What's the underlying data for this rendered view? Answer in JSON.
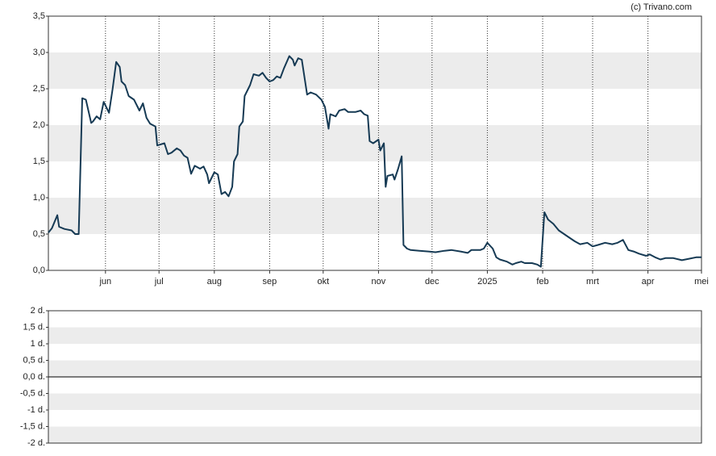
{
  "credit": "(c) Trivano.com",
  "chart_data": [
    {
      "type": "line",
      "xlim": [
        -1,
        365
      ],
      "xticks": [
        {
          "value": 31,
          "label": "jun"
        },
        {
          "value": 61,
          "label": "jul"
        },
        {
          "value": 92,
          "label": "aug"
        },
        {
          "value": 123,
          "label": "sep"
        },
        {
          "value": 153,
          "label": "okt"
        },
        {
          "value": 184,
          "label": "nov"
        },
        {
          "value": 214,
          "label": "dec"
        },
        {
          "value": 245,
          "label": "2025"
        },
        {
          "value": 276,
          "label": "feb"
        },
        {
          "value": 304,
          "label": "mrt"
        },
        {
          "value": 335,
          "label": "apr"
        },
        {
          "value": 365,
          "label": "mei"
        }
      ],
      "ylim": [
        0,
        3.5
      ],
      "yticks": [
        {
          "value": 0,
          "label": "0,0"
        },
        {
          "value": 0.5,
          "label": "0,5"
        },
        {
          "value": 1,
          "label": "1,0"
        },
        {
          "value": 1.5,
          "label": "1,5"
        },
        {
          "value": 2,
          "label": "2,0"
        },
        {
          "value": 2.5,
          "label": "2,5"
        },
        {
          "value": 3,
          "label": "3,0"
        },
        {
          "value": 3.5,
          "label": "3,5"
        }
      ],
      "grid": true,
      "series": [
        {
          "color": "#163a54",
          "x": [
            -1,
            1,
            4,
            5,
            8,
            12,
            14,
            16,
            18,
            20,
            23,
            24,
            26,
            28,
            30,
            33,
            35,
            37,
            39,
            40,
            42,
            44,
            47,
            49,
            50,
            52,
            54,
            56,
            59,
            60,
            64,
            66,
            68,
            71,
            73,
            75,
            77,
            79,
            81,
            84,
            86,
            88,
            89,
            92,
            94,
            96,
            98,
            100,
            102,
            103,
            105,
            106,
            108,
            109,
            112,
            114,
            117,
            119,
            121,
            123,
            125,
            127,
            129,
            131,
            134,
            136,
            137,
            139,
            141,
            144,
            146,
            149,
            152,
            154,
            156,
            157,
            160,
            162,
            165,
            167,
            171,
            174,
            176,
            178,
            179,
            181,
            184,
            185,
            187,
            188,
            189,
            192,
            193,
            195,
            197,
            198,
            200,
            202,
            207,
            212,
            216,
            221,
            225,
            230,
            234,
            236,
            241,
            243,
            245,
            248,
            250,
            252,
            256,
            259,
            261,
            264,
            266,
            270,
            273,
            275,
            277,
            279,
            282,
            285,
            288,
            291,
            294,
            297,
            301,
            304,
            307,
            311,
            315,
            318,
            321,
            324,
            327,
            330,
            334,
            336,
            339,
            342,
            345,
            349,
            354,
            358,
            362,
            365
          ],
          "values": [
            0.52,
            0.58,
            0.76,
            0.6,
            0.57,
            0.55,
            0.5,
            0.5,
            2.37,
            2.35,
            2.03,
            2.05,
            2.12,
            2.08,
            2.32,
            2.17,
            2.5,
            2.87,
            2.8,
            2.6,
            2.55,
            2.4,
            2.35,
            2.25,
            2.2,
            2.3,
            2.1,
            2.02,
            1.98,
            1.72,
            1.75,
            1.6,
            1.62,
            1.68,
            1.65,
            1.58,
            1.55,
            1.33,
            1.44,
            1.4,
            1.43,
            1.32,
            1.2,
            1.35,
            1.32,
            1.05,
            1.08,
            1.02,
            1.15,
            1.5,
            1.6,
            1.98,
            2.05,
            2.4,
            2.55,
            2.7,
            2.68,
            2.72,
            2.65,
            2.6,
            2.62,
            2.67,
            2.65,
            2.78,
            2.95,
            2.9,
            2.82,
            2.92,
            2.9,
            2.42,
            2.45,
            2.42,
            2.35,
            2.25,
            1.95,
            2.15,
            2.12,
            2.2,
            2.22,
            2.18,
            2.18,
            2.2,
            2.15,
            2.13,
            1.78,
            1.75,
            1.8,
            1.65,
            1.75,
            1.15,
            1.3,
            1.32,
            1.25,
            1.4,
            1.57,
            0.35,
            0.3,
            0.28,
            0.27,
            0.26,
            0.25,
            0.27,
            0.28,
            0.26,
            0.24,
            0.28,
            0.28,
            0.3,
            0.38,
            0.3,
            0.18,
            0.15,
            0.12,
            0.08,
            0.1,
            0.12,
            0.1,
            0.1,
            0.08,
            0.05,
            0.8,
            0.7,
            0.64,
            0.55,
            0.5,
            0.45,
            0.4,
            0.36,
            0.38,
            0.33,
            0.35,
            0.38,
            0.36,
            0.38,
            0.42,
            0.28,
            0.26,
            0.23,
            0.2,
            0.22,
            0.18,
            0.15,
            0.17,
            0.17,
            0.14,
            0.16,
            0.18,
            0.18
          ]
        }
      ]
    },
    {
      "type": "line",
      "ylim": [
        -2,
        2
      ],
      "yticks": [
        {
          "value": -2,
          "label": "-2 d."
        },
        {
          "value": -1.5,
          "label": "-1,5 d."
        },
        {
          "value": -1,
          "label": "-1 d."
        },
        {
          "value": -0.5,
          "label": "-0,5 d."
        },
        {
          "value": 0,
          "label": "0,0 d."
        },
        {
          "value": 0.5,
          "label": "0,5 d."
        },
        {
          "value": 1,
          "label": "1 d."
        },
        {
          "value": 1.5,
          "label": "1,5 d."
        },
        {
          "value": 2,
          "label": "2 d."
        }
      ],
      "grid": true,
      "series": []
    }
  ]
}
